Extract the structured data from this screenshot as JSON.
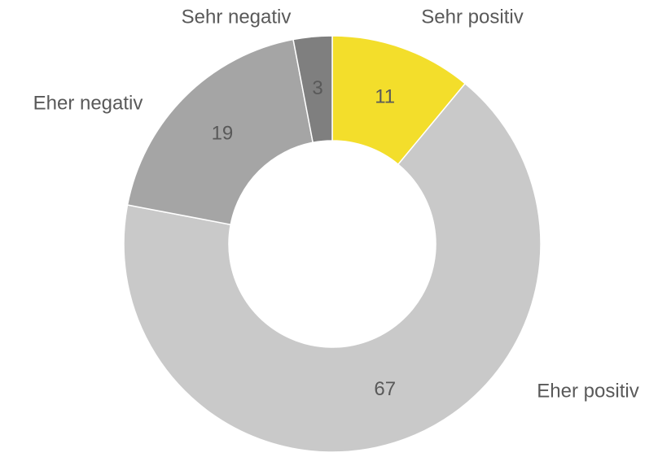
{
  "chart_data": {
    "type": "pie",
    "categories": [
      "Sehr positiv",
      "Eher positiv",
      "Eher negativ",
      "Sehr negativ"
    ],
    "values": [
      11,
      67,
      19,
      3
    ],
    "colors": [
      "#f3de2b",
      "#c9c9c9",
      "#a5a5a5",
      "#7f7f7f"
    ]
  }
}
